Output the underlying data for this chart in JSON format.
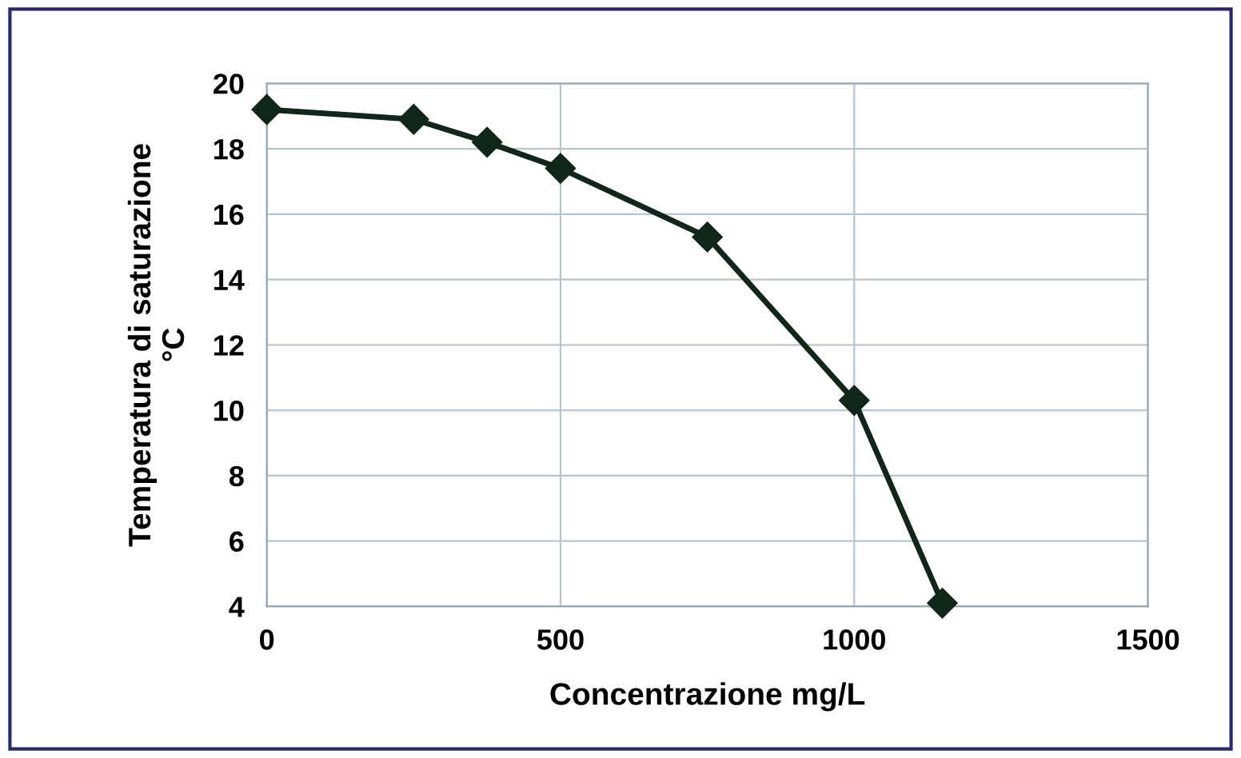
{
  "chart_data": {
    "type": "line",
    "xlabel": "Concentrazione mg/L",
    "ylabel": "Temperatura di saturazione\n°C",
    "x": [
      0,
      250,
      375,
      500,
      750,
      1000,
      1150
    ],
    "series": [
      {
        "color": "#10261a",
        "values": [
          19.2,
          18.9,
          18.2,
          17.4,
          15.3,
          10.3,
          4.1
        ]
      }
    ],
    "xlim": [
      0,
      1500
    ],
    "xticks": [
      0,
      500,
      1000,
      1500
    ],
    "ylim": [
      4,
      20
    ],
    "yticks": [
      4,
      6,
      8,
      10,
      12,
      14,
      16,
      18,
      20
    ],
    "grid": true,
    "marker": "diamond",
    "line_style": "solid"
  }
}
